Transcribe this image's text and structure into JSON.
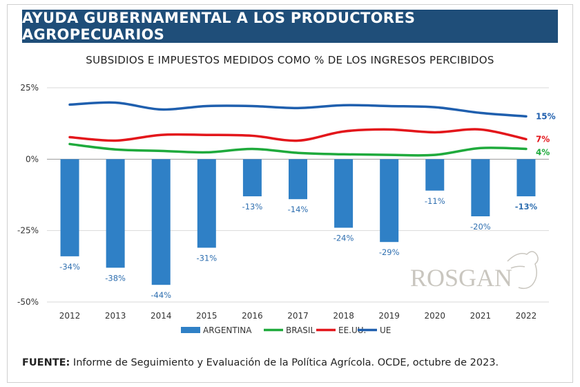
{
  "header": {
    "title": "AYUDA GUBERNAMENTAL A LOS PRODUCTORES AGROPECUARIOS"
  },
  "source": {
    "label": "FUENTE:",
    "text": " Informe de Seguimiento y Evaluación de la Política Agrícola. OCDE, octubre de 2023."
  },
  "logo": {
    "text": "ROSGAN"
  },
  "chart_data": {
    "type": "bar+line",
    "title": "SUBSIDIOS E IMPUESTOS MEDIDOS COMO % DE LOS INGRESOS PERCIBIDOS",
    "categories": [
      "2012",
      "2013",
      "2014",
      "2015",
      "2016",
      "2017",
      "2018",
      "2019",
      "2020",
      "2021",
      "2022"
    ],
    "ylim": [
      -50,
      25
    ],
    "yticks": [
      25,
      0,
      -25,
      -50
    ],
    "ytick_labels": [
      "25%",
      "0%",
      "-25%",
      "-50%"
    ],
    "grid": true,
    "legend_position": "bottom",
    "series": [
      {
        "name": "ARGENTINA",
        "type": "bar",
        "color": "#2f80c6",
        "values": [
          -34,
          -38,
          -44,
          -31,
          -13,
          -14,
          -24,
          -29,
          -11,
          -20,
          -13
        ],
        "labels": [
          "-34%",
          "-38%",
          "-44%",
          "-31%",
          "-13%",
          "-14%",
          "-24%",
          "-29%",
          "-11%",
          "-20%",
          "-13%"
        ]
      },
      {
        "name": "BRASIL",
        "type": "line",
        "color": "#1faa3c",
        "values": [
          5.3,
          3.4,
          2.9,
          2.4,
          3.6,
          2.2,
          1.7,
          1.5,
          1.5,
          3.9,
          3.6
        ],
        "end_label": "4%"
      },
      {
        "name": "EE.UU.",
        "type": "line",
        "color": "#e3161b",
        "values": [
          7.7,
          6.5,
          8.5,
          8.5,
          8.2,
          6.5,
          9.7,
          10.4,
          9.4,
          10.4,
          7
        ],
        "end_label": "7%"
      },
      {
        "name": "UE",
        "type": "line",
        "color": "#1f5fae",
        "values": [
          19.1,
          19.8,
          17.4,
          18.6,
          18.6,
          17.9,
          18.9,
          18.6,
          18.2,
          16.2,
          15
        ],
        "end_label": "15%"
      }
    ]
  }
}
